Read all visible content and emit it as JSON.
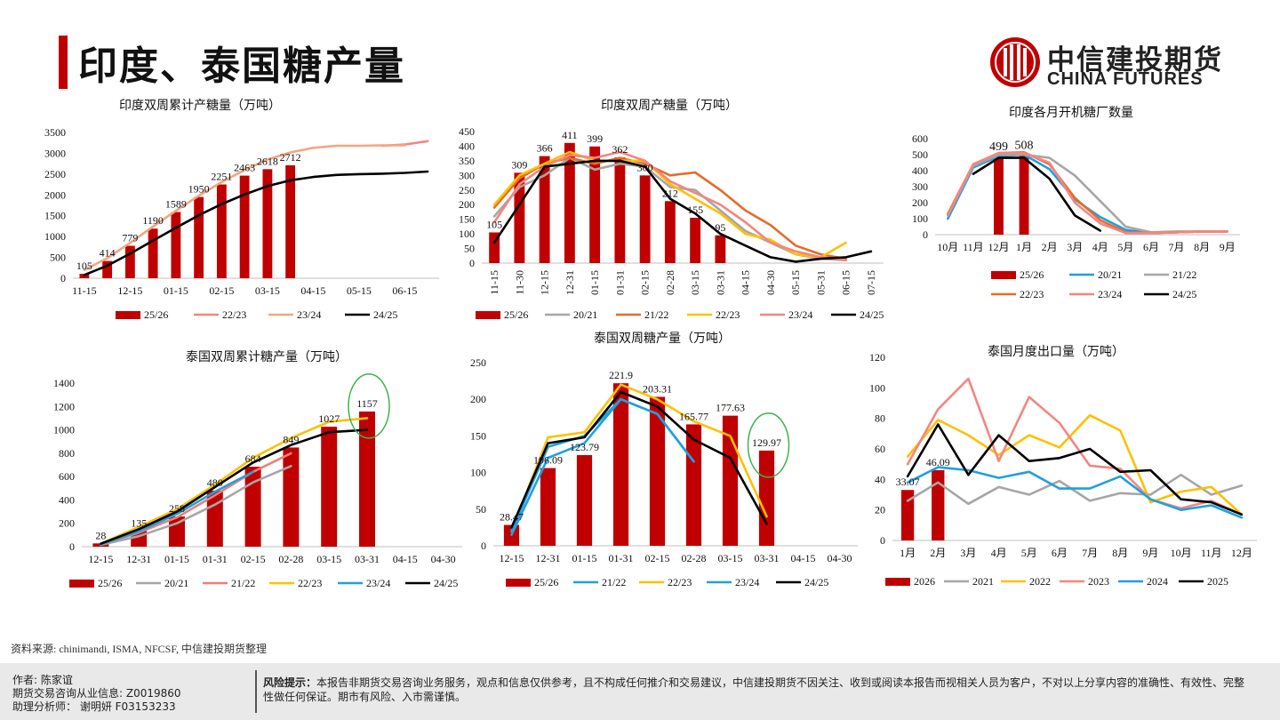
{
  "header": {
    "title": "印度、泰国糖产量"
  },
  "logo": {
    "cn": "中信建投期货",
    "en": "CHINA FUTURES"
  },
  "source": "资料来源: chinimandi, ISMA, NFCSF, 中信建投期货整理",
  "footer": {
    "author": "作者: 陈家谊",
    "license": "期货交易咨询从业信息: Z0019860",
    "assistant": "助理分析师： 谢明妍 F03153233",
    "risk_label": "风险提示：",
    "risk_text": "本报告非期货交易咨询业务服务，观点和信息仅供参考，且不构成任何推介和交易建议，中信建投期货不因关注、收到或阅读本报告而视相关人员为客户，不对以上分享内容的准确性、有效性、完整性做任何保证。期市有风险、入市需谨慎。"
  },
  "colors": {
    "s2526": "#c00000",
    "s2021": "#a6a6a6",
    "s2122": "#e46c2a",
    "s2223": "#ffc000",
    "s2324": "#f4867f",
    "s2425": "#000000",
    "s2324b": "#1fa0e0",
    "s2122b": "#f07f74",
    "s2324c": "#f4a582",
    "s2024": "#1fa0e0",
    "circle": "#3cb44b"
  },
  "chart_data": [
    {
      "id": "c1",
      "type": "bar",
      "title": "印度双周累计产糖量（万吨）",
      "categories": [
        "11-15",
        "11-30",
        "12-15",
        "12-31",
        "01-15",
        "01-31",
        "02-15",
        "02-28",
        "03-15",
        "03-31",
        "04-15",
        "04-30",
        "05-15",
        "05-31",
        "06-15",
        "06-30"
      ],
      "tick_labels": [
        "11-15",
        "",
        "12-15",
        "",
        "01-15",
        "",
        "02-15",
        "",
        "03-15",
        "",
        "04-15",
        "",
        "05-15",
        "",
        "06-15",
        ""
      ],
      "ylim": [
        0,
        3500
      ],
      "yticks": [
        0,
        500,
        1000,
        1500,
        2000,
        2500,
        3000,
        3500
      ],
      "series": [
        {
          "name": "25/26",
          "kind": "bar",
          "color": "s2526",
          "labels": true,
          "values": [
            105,
            414,
            779,
            1190,
            1589,
            1950,
            2251,
            2463,
            2618,
            2712,
            null,
            null,
            null,
            null,
            null,
            null
          ]
        },
        {
          "name": "22/23",
          "kind": "line",
          "color": "s2324",
          "values": [
            null,
            null,
            null,
            null,
            null,
            null,
            null,
            null,
            null,
            null,
            null,
            null,
            null,
            3180,
            3210,
            3290
          ]
        },
        {
          "name": "23/24",
          "kind": "line",
          "color": "s2324c",
          "values": [
            200,
            480,
            850,
            1240,
            1620,
            1980,
            2310,
            2600,
            2850,
            3020,
            3130,
            3180,
            3180,
            3190,
            3190,
            null
          ]
        },
        {
          "name": "24/25",
          "kind": "line",
          "color": "s2425",
          "values": [
            80,
            300,
            590,
            900,
            1210,
            1510,
            1780,
            2010,
            2210,
            2350,
            2430,
            2480,
            2500,
            2510,
            2530,
            2560
          ]
        }
      ]
    },
    {
      "id": "c2",
      "type": "bar",
      "title": "印度双周产糖量（万吨）",
      "categories": [
        "11-15",
        "11-30",
        "12-15",
        "12-31",
        "01-15",
        "01-31",
        "02-15",
        "02-28",
        "03-15",
        "03-31",
        "04-15",
        "04-30",
        "05-15",
        "05-31",
        "06-15",
        "07-15"
      ],
      "ylim": [
        0,
        450
      ],
      "yticks": [
        0,
        50,
        100,
        150,
        200,
        250,
        300,
        350,
        400,
        450
      ],
      "series": [
        {
          "name": "25/26",
          "kind": "bar",
          "color": "s2526",
          "labels": true,
          "values": [
            105,
            309,
            366,
            411,
            399,
            362,
            300,
            212,
            155,
            95,
            null,
            null,
            null,
            null,
            null,
            null
          ]
        },
        {
          "name": "20/21",
          "kind": "line",
          "color": "s2021",
          "values": [
            160,
            260,
            300,
            360,
            320,
            340,
            330,
            260,
            250,
            180,
            110,
            70,
            30,
            15,
            10,
            null
          ]
        },
        {
          "name": "21/22",
          "kind": "line",
          "color": "s2122",
          "values": [
            190,
            290,
            340,
            360,
            340,
            360,
            340,
            300,
            310,
            250,
            180,
            130,
            60,
            30,
            15,
            null
          ]
        },
        {
          "name": "22/23",
          "kind": "line",
          "color": "s2223",
          "values": [
            200,
            300,
            340,
            380,
            350,
            350,
            350,
            270,
            220,
            170,
            100,
            80,
            30,
            20,
            70,
            null
          ]
        },
        {
          "name": "23/24",
          "kind": "line",
          "color": "s2324",
          "values": [
            140,
            270,
            330,
            370,
            360,
            380,
            350,
            280,
            240,
            200,
            140,
            70,
            40,
            20,
            10,
            null
          ]
        },
        {
          "name": "24/25",
          "kind": "line",
          "color": "s2425",
          "values": [
            70,
            200,
            330,
            340,
            350,
            350,
            330,
            220,
            170,
            100,
            60,
            20,
            5,
            15,
            20,
            40
          ]
        }
      ]
    },
    {
      "id": "c3",
      "type": "bar",
      "title": "印度各月开机糖厂数量",
      "categories": [
        "10月",
        "11月",
        "12月",
        "1月",
        "2月",
        "3月",
        "4月",
        "5月",
        "6月",
        "7月",
        "8月",
        "9月"
      ],
      "ylim": [
        0,
        600
      ],
      "yticks": [
        0,
        100,
        200,
        300,
        400,
        500,
        600
      ],
      "series": [
        {
          "name": "25/26",
          "kind": "bar",
          "color": "s2526",
          "labels": true,
          "values": [
            null,
            null,
            499,
            508,
            null,
            null,
            null,
            null,
            null,
            null,
            null,
            null
          ]
        },
        {
          "name": "20/21",
          "kind": "line",
          "color": "s2024",
          "values": [
            100,
            420,
            490,
            500,
            410,
            220,
            110,
            30,
            10,
            15,
            20,
            20
          ]
        },
        {
          "name": "21/22",
          "kind": "line",
          "color": "s2021",
          "values": [
            120,
            430,
            500,
            500,
            480,
            370,
            210,
            50,
            15,
            20,
            20,
            20
          ]
        },
        {
          "name": "22/23",
          "kind": "line",
          "color": "s2122",
          "values": [
            130,
            440,
            510,
            515,
            440,
            230,
            90,
            15,
            10,
            15,
            20,
            20
          ]
        },
        {
          "name": "23/24",
          "kind": "line",
          "color": "s2324",
          "values": [
            120,
            440,
            510,
            510,
            450,
            200,
            70,
            10,
            10,
            15,
            20,
            20
          ]
        },
        {
          "name": "24/25",
          "kind": "line",
          "color": "s2425",
          "values": [
            null,
            380,
            480,
            480,
            350,
            120,
            25,
            null,
            null,
            null,
            null,
            null
          ]
        }
      ]
    },
    {
      "id": "c4",
      "type": "bar",
      "title": "泰国双周累计糖产量（万吨）",
      "categories": [
        "12-15",
        "12-31",
        "01-15",
        "01-31",
        "02-15",
        "02-28",
        "03-15",
        "03-31",
        "04-15",
        "04-30"
      ],
      "ylim": [
        0,
        1400
      ],
      "yticks": [
        0,
        200,
        400,
        600,
        800,
        1000,
        1200,
        1400
      ],
      "series": [
        {
          "name": "25/26",
          "kind": "bar",
          "color": "s2526",
          "labels": true,
          "values": [
            28,
            135,
            258,
            480,
            684,
            849,
            1027,
            1157,
            null,
            null
          ]
        },
        {
          "name": "20/21",
          "kind": "line",
          "color": "s2021",
          "values": [
            15,
            90,
            200,
            360,
            550,
            690,
            null,
            null,
            null,
            null
          ]
        },
        {
          "name": "21/22",
          "kind": "line",
          "color": "s2122b",
          "values": [
            20,
            120,
            250,
            440,
            640,
            800,
            null,
            null,
            null,
            null
          ]
        },
        {
          "name": "22/23",
          "kind": "line",
          "color": "s2223",
          "values": [
            25,
            170,
            320,
            530,
            760,
            930,
            1070,
            1100,
            null,
            null
          ]
        },
        {
          "name": "23/24",
          "kind": "line",
          "color": "s2324b",
          "values": [
            20,
            130,
            280,
            470,
            640,
            null,
            null,
            null,
            null,
            null
          ]
        },
        {
          "name": "24/25",
          "kind": "line",
          "color": "s2425",
          "values": [
            25,
            150,
            300,
            510,
            720,
            870,
            980,
            1000,
            null,
            null
          ]
        }
      ]
    },
    {
      "id": "c5",
      "type": "bar",
      "title": "泰国双周糖产量（万吨）",
      "categories": [
        "12-15",
        "12-31",
        "01-15",
        "01-31",
        "02-15",
        "02-28",
        "03-15",
        "03-31",
        "04-15",
        "04-30"
      ],
      "ylim": [
        0,
        250
      ],
      "yticks": [
        0,
        50,
        100,
        150,
        200,
        250
      ],
      "series": [
        {
          "name": "25/26",
          "kind": "bar",
          "color": "s2526",
          "labels": true,
          "values": [
            28.47,
            106.09,
            123.79,
            221.9,
            203.31,
            165.77,
            177.63,
            129.97,
            null,
            null
          ]
        },
        {
          "name": "21/22",
          "kind": "line",
          "color": "s2024",
          "values": [
            15,
            120,
            140,
            200,
            180,
            115,
            null,
            null,
            null,
            null
          ]
        },
        {
          "name": "22/23",
          "kind": "line",
          "color": "s2223",
          "values": [
            20,
            148,
            155,
            220,
            200,
            170,
            150,
            40,
            null,
            null
          ]
        },
        {
          "name": "23/24",
          "kind": "line",
          "color": "s2024",
          "values": [
            20,
            135,
            150,
            200,
            180,
            115,
            null,
            null,
            null,
            null
          ]
        },
        {
          "name": "24/25",
          "kind": "line",
          "color": "s2425",
          "values": [
            25,
            140,
            148,
            210,
            190,
            145,
            120,
            30,
            null,
            null
          ]
        }
      ]
    },
    {
      "id": "c6",
      "type": "bar",
      "title": "泰国月度出口量（万吨）",
      "categories": [
        "1月",
        "2月",
        "3月",
        "4月",
        "5月",
        "6月",
        "7月",
        "8月",
        "9月",
        "10月",
        "11月",
        "12月"
      ],
      "ylim": [
        0,
        120
      ],
      "yticks": [
        0,
        20,
        40,
        60,
        80,
        100,
        120
      ],
      "series": [
        {
          "name": "2026",
          "kind": "bar",
          "color": "s2526",
          "labels": true,
          "values": [
            33.07,
            46.09,
            null,
            null,
            null,
            null,
            null,
            null,
            null,
            null,
            null,
            null
          ]
        },
        {
          "name": "2021",
          "kind": "line",
          "color": "s2021",
          "values": [
            26,
            38,
            24,
            35,
            30,
            39,
            26,
            31,
            30,
            43,
            30,
            36
          ]
        },
        {
          "name": "2022",
          "kind": "line",
          "color": "s2223",
          "values": [
            55,
            79,
            69,
            56,
            69,
            61,
            82,
            72,
            25,
            32,
            35,
            17
          ]
        },
        {
          "name": "2023",
          "kind": "line",
          "color": "s2324",
          "values": [
            50,
            86,
            106,
            52,
            94,
            77,
            49,
            47,
            27,
            21,
            26,
            17
          ]
        },
        {
          "name": "2024",
          "kind": "line",
          "color": "s2024",
          "values": [
            38,
            48,
            46,
            41,
            45,
            34,
            34,
            42,
            27,
            20,
            23,
            15
          ]
        },
        {
          "name": "2025",
          "kind": "line",
          "color": "s2425",
          "values": [
            42,
            76,
            43,
            69,
            52,
            54,
            60,
            45,
            46,
            27,
            25,
            17
          ]
        }
      ]
    }
  ],
  "legends": {
    "c1": [
      {
        "label": "25/26",
        "color": "s2526",
        "kind": "bar"
      },
      {
        "label": "22/23",
        "color": "s2324",
        "kind": "line"
      },
      {
        "label": "23/24",
        "color": "s2324c",
        "kind": "line"
      },
      {
        "label": "24/25",
        "color": "s2425",
        "kind": "line"
      }
    ],
    "c2": [
      {
        "label": "25/26",
        "color": "s2526",
        "kind": "bar"
      },
      {
        "label": "20/21",
        "color": "s2021",
        "kind": "line"
      },
      {
        "label": "21/22",
        "color": "s2122",
        "kind": "line"
      },
      {
        "label": "22/23",
        "color": "s2223",
        "kind": "line"
      },
      {
        "label": "23/24",
        "color": "s2324",
        "kind": "line"
      },
      {
        "label": "24/25",
        "color": "s2425",
        "kind": "line"
      }
    ],
    "c3": [
      {
        "label": "25/26",
        "color": "s2526",
        "kind": "bar"
      },
      {
        "label": "20/21",
        "color": "s2024",
        "kind": "line"
      },
      {
        "label": "21/22",
        "color": "s2021",
        "kind": "line"
      },
      {
        "label": "22/23",
        "color": "s2122",
        "kind": "line"
      },
      {
        "label": "23/24",
        "color": "s2324",
        "kind": "line"
      },
      {
        "label": "24/25",
        "color": "s2425",
        "kind": "line"
      }
    ],
    "c4": [
      {
        "label": "25/26",
        "color": "s2526",
        "kind": "bar"
      },
      {
        "label": "20/21",
        "color": "s2021",
        "kind": "line"
      },
      {
        "label": "21/22",
        "color": "s2122b",
        "kind": "line"
      },
      {
        "label": "22/23",
        "color": "s2223",
        "kind": "line"
      },
      {
        "label": "23/24",
        "color": "s2324b",
        "kind": "line"
      },
      {
        "label": "24/25",
        "color": "s2425",
        "kind": "line"
      }
    ],
    "c5": [
      {
        "label": "25/26",
        "color": "s2526",
        "kind": "bar"
      },
      {
        "label": "21/22",
        "color": "s2024",
        "kind": "line"
      },
      {
        "label": "22/23",
        "color": "s2223",
        "kind": "line"
      },
      {
        "label": "23/24",
        "color": "s2024",
        "kind": "line"
      },
      {
        "label": "24/25",
        "color": "s2425",
        "kind": "line"
      }
    ],
    "c6": [
      {
        "label": "2026",
        "color": "s2526",
        "kind": "bar"
      },
      {
        "label": "2021",
        "color": "s2021",
        "kind": "line"
      },
      {
        "label": "2022",
        "color": "s2223",
        "kind": "line"
      },
      {
        "label": "2023",
        "color": "s2324",
        "kind": "line"
      },
      {
        "label": "2024",
        "color": "s2024",
        "kind": "line"
      },
      {
        "label": "2025",
        "color": "s2425",
        "kind": "line"
      }
    ]
  }
}
